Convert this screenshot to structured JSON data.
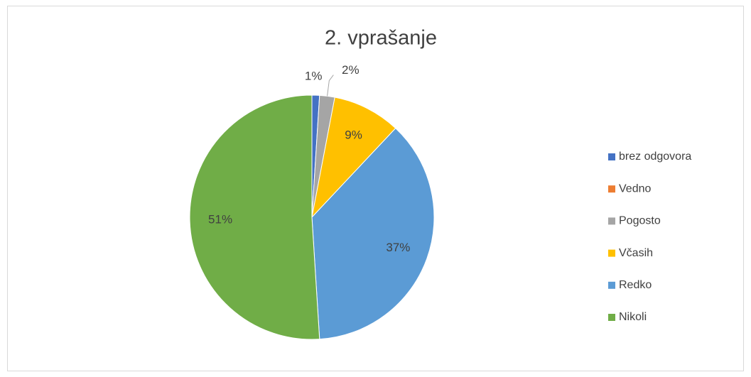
{
  "chart_data": {
    "type": "pie",
    "title": "2. vprašanje",
    "categories": [
      "brez odgovora",
      "Vedno",
      "Pogosto",
      "Včasih",
      "Redko",
      "Nikoli"
    ],
    "values": [
      1,
      0,
      2,
      9,
      37,
      51
    ],
    "value_labels": [
      "1%",
      null,
      "2%",
      "9%",
      "37%",
      "51%"
    ],
    "colors": [
      "#4472c4",
      "#ed7d31",
      "#a5a5a5",
      "#ffc000",
      "#5b9bd5",
      "#70ad47"
    ],
    "legend": "right"
  }
}
